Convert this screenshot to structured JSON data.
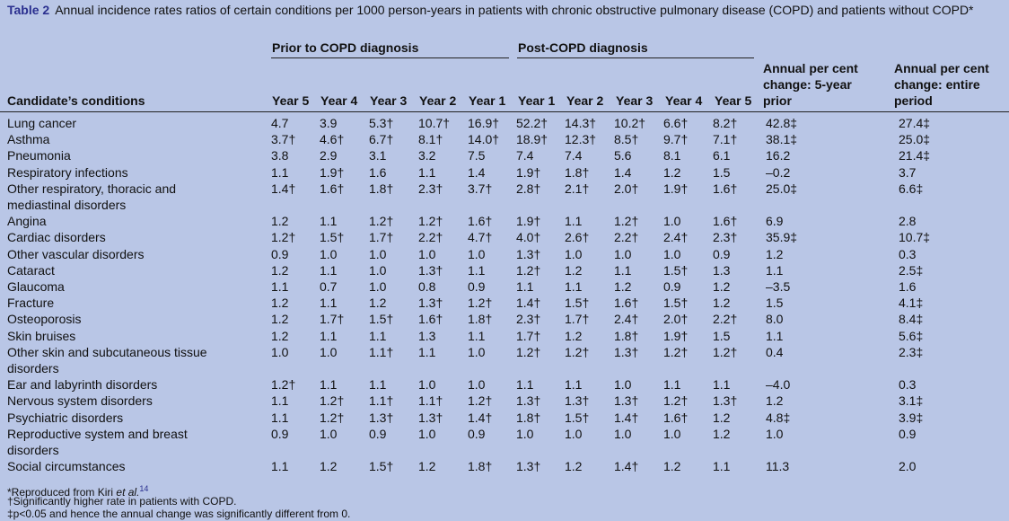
{
  "caption": {
    "label": "Table 2",
    "text": "Annual incidence rates ratios of certain conditions per 1000 person-years in patients with chronic obstructive pulmonary disease (COPD) and patients without COPD*"
  },
  "groups": {
    "prior": "Prior to COPD diagnosis",
    "post": "Post-COPD diagnosis"
  },
  "headers": {
    "condition": "Candidate’s conditions",
    "years": [
      "Year 5",
      "Year 4",
      "Year 3",
      "Year 2",
      "Year 1",
      "Year 1",
      "Year 2",
      "Year 3",
      "Year 4",
      "Year 5"
    ],
    "annual_prior": "Annual per cent change: 5-year prior",
    "annual_entire": "Annual per cent change: entire period"
  },
  "rows": [
    {
      "name": "Lung cancer",
      "v": [
        "4.7",
        "3.9",
        "5.3†",
        "10.7†",
        "16.9†",
        "52.2†",
        "14.3†",
        "10.2†",
        "6.6†",
        "8.2†"
      ],
      "prior": "42.8‡",
      "entire": "27.4‡"
    },
    {
      "name": "Asthma",
      "v": [
        "3.7†",
        "4.6†",
        "6.7†",
        "8.1†",
        "14.0†",
        "18.9†",
        "12.3†",
        "8.5†",
        "9.7†",
        "7.1†"
      ],
      "prior": "38.1‡",
      "entire": "25.0‡"
    },
    {
      "name": "Pneumonia",
      "v": [
        "3.8",
        "2.9",
        "3.1",
        "3.2",
        "7.5",
        "7.4",
        "7.4",
        "5.6",
        "8.1",
        "6.1"
      ],
      "prior": "16.2",
      "entire": "21.4‡"
    },
    {
      "name": "Respiratory infections",
      "v": [
        "1.1",
        "1.9†",
        "1.6",
        "1.1",
        "1.4",
        "1.9†",
        "1.8†",
        "1.4",
        "1.2",
        "1.5"
      ],
      "prior": "–0.2",
      "entire": "3.7"
    },
    {
      "name": "Other respiratory, thoracic and mediastinal disorders",
      "v": [
        "1.4†",
        "1.6†",
        "1.8†",
        "2.3†",
        "3.7†",
        "2.8†",
        "2.1†",
        "2.0†",
        "1.9†",
        "1.6†"
      ],
      "prior": "25.0‡",
      "entire": "6.6‡"
    },
    {
      "name": "Angina",
      "v": [
        "1.2",
        "1.1",
        "1.2†",
        "1.2†",
        "1.6†",
        "1.9†",
        "1.1",
        "1.2†",
        "1.0",
        "1.6†"
      ],
      "prior": "6.9",
      "entire": "2.8"
    },
    {
      "name": "Cardiac disorders",
      "v": [
        "1.2†",
        "1.5†",
        "1.7†",
        "2.2†",
        "4.7†",
        "4.0†",
        "2.6†",
        "2.2†",
        "2.4†",
        "2.3†"
      ],
      "prior": "35.9‡",
      "entire": "10.7‡"
    },
    {
      "name": "Other vascular disorders",
      "v": [
        "0.9",
        "1.0",
        "1.0",
        "1.0",
        "1.0",
        "1.3†",
        "1.0",
        "1.0",
        "1.0",
        "0.9"
      ],
      "prior": "1.2",
      "entire": "0.3"
    },
    {
      "name": "Cataract",
      "v": [
        "1.2",
        "1.1",
        "1.0",
        "1.3†",
        "1.1",
        "1.2†",
        "1.2",
        "1.1",
        "1.5†",
        "1.3"
      ],
      "prior": "1.1",
      "entire": "2.5‡"
    },
    {
      "name": "Glaucoma",
      "v": [
        "1.1",
        "0.7",
        "1.0",
        "0.8",
        "0.9",
        "1.1",
        "1.1",
        "1.2",
        "0.9",
        "1.2"
      ],
      "prior": "–3.5",
      "entire": "1.6"
    },
    {
      "name": "Fracture",
      "v": [
        "1.2",
        "1.1",
        "1.2",
        "1.3†",
        "1.2†",
        "1.4†",
        "1.5†",
        "1.6†",
        "1.5†",
        "1.2"
      ],
      "prior": "1.5",
      "entire": "4.1‡"
    },
    {
      "name": "Osteoporosis",
      "v": [
        "1.2",
        "1.7†",
        "1.5†",
        "1.6†",
        "1.8†",
        "2.3†",
        "1.7†",
        "2.4†",
        "2.0†",
        "2.2†"
      ],
      "prior": "8.0",
      "entire": "8.4‡"
    },
    {
      "name": "Skin bruises",
      "v": [
        "1.2",
        "1.1",
        "1.1",
        "1.3",
        "1.1",
        "1.7†",
        "1.2",
        "1.8†",
        "1.9†",
        "1.5"
      ],
      "prior": "1.1",
      "entire": "5.6‡"
    },
    {
      "name": "Other skin and subcutaneous tissue disorders",
      "v": [
        "1.0",
        "1.0",
        "1.1†",
        "1.1",
        "1.0",
        "1.2†",
        "1.2†",
        "1.3†",
        "1.2†",
        "1.2†"
      ],
      "prior": "0.4",
      "entire": "2.3‡"
    },
    {
      "name": "Ear and labyrinth disorders",
      "v": [
        "1.2†",
        "1.1",
        "1.1",
        "1.0",
        "1.0",
        "1.1",
        "1.1",
        "1.0",
        "1.1",
        "1.1"
      ],
      "prior": "–4.0",
      "entire": "0.3"
    },
    {
      "name": "Nervous system disorders",
      "v": [
        "1.1",
        "1.2†",
        "1.1†",
        "1.1†",
        "1.2†",
        "1.3†",
        "1.3†",
        "1.3†",
        "1.2†",
        "1.3†"
      ],
      "prior": "1.2",
      "entire": "3.1‡"
    },
    {
      "name": "Psychiatric disorders",
      "v": [
        "1.1",
        "1.2†",
        "1.3†",
        "1.3†",
        "1.4†",
        "1.8†",
        "1.5†",
        "1.4†",
        "1.6†",
        "1.2"
      ],
      "prior": "4.8‡",
      "entire": "3.9‡"
    },
    {
      "name": "Reproductive system and breast disorders",
      "v": [
        "0.9",
        "1.0",
        "0.9",
        "1.0",
        "0.9",
        "1.0",
        "1.0",
        "1.0",
        "1.0",
        "1.2"
      ],
      "prior": "1.0",
      "entire": "0.9"
    },
    {
      "name": "Social circumstances",
      "v": [
        "1.1",
        "1.2",
        "1.5†",
        "1.2",
        "1.8†",
        "1.3†",
        "1.2",
        "1.4†",
        "1.2",
        "1.1"
      ],
      "prior": "11.3",
      "entire": "2.0"
    }
  ],
  "footnotes": {
    "ref_text": "*Reproduced from Kiri",
    "ref_etal": "et al.",
    "ref_num": "14",
    "dagger": "†Significantly higher rate in patients with COPD.",
    "ddagger": "‡p<0.05 and hence the annual change was significantly different from 0."
  }
}
